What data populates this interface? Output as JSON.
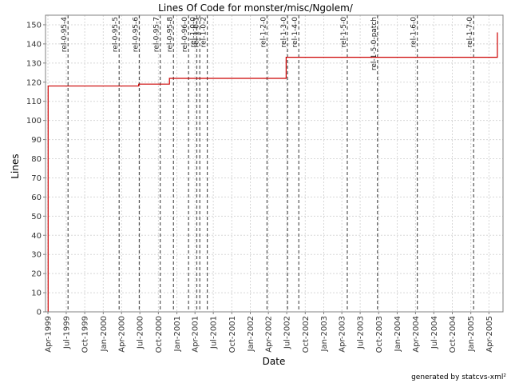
{
  "chart_data": {
    "type": "line",
    "title": "Lines Of Code for monster/misc/Ngolem/",
    "xlabel": "Date",
    "ylabel": "Lines",
    "credit": "generated by statcvs-xml²",
    "ylim": [
      0,
      155
    ],
    "yticks": [
      0,
      10,
      20,
      30,
      40,
      50,
      60,
      70,
      80,
      90,
      100,
      110,
      120,
      130,
      140,
      150
    ],
    "xlim": [
      "1999-03-20",
      "2005-06-10"
    ],
    "xticks": [
      {
        "date": "1999-04-01",
        "label": "Apr-1999"
      },
      {
        "date": "1999-07-01",
        "label": "Jul-1999"
      },
      {
        "date": "1999-10-01",
        "label": "Oct-1999"
      },
      {
        "date": "2000-01-01",
        "label": "Jan-2000"
      },
      {
        "date": "2000-04-01",
        "label": "Apr-2000"
      },
      {
        "date": "2000-07-01",
        "label": "Jul-2000"
      },
      {
        "date": "2000-10-01",
        "label": "Oct-2000"
      },
      {
        "date": "2001-01-01",
        "label": "Jan-2001"
      },
      {
        "date": "2001-04-01",
        "label": "Apr-2001"
      },
      {
        "date": "2001-07-01",
        "label": "Jul-2001"
      },
      {
        "date": "2001-10-01",
        "label": "Oct-2001"
      },
      {
        "date": "2002-01-01",
        "label": "Jan-2002"
      },
      {
        "date": "2002-04-01",
        "label": "Apr-2002"
      },
      {
        "date": "2002-07-01",
        "label": "Jul-2002"
      },
      {
        "date": "2002-10-01",
        "label": "Oct-2002"
      },
      {
        "date": "2003-01-01",
        "label": "Jan-2003"
      },
      {
        "date": "2003-04-01",
        "label": "Apr-2003"
      },
      {
        "date": "2003-07-01",
        "label": "Jul-2003"
      },
      {
        "date": "2003-10-01",
        "label": "Oct-2003"
      },
      {
        "date": "2004-01-01",
        "label": "Jan-2004"
      },
      {
        "date": "2004-04-01",
        "label": "Apr-2004"
      },
      {
        "date": "2004-07-01",
        "label": "Jul-2004"
      },
      {
        "date": "2004-10-01",
        "label": "Oct-2004"
      },
      {
        "date": "2005-01-01",
        "label": "Jan-2005"
      },
      {
        "date": "2005-04-01",
        "label": "Apr-2005"
      }
    ],
    "grid": true,
    "line_color": "#cc0000",
    "marker_color": "#555555",
    "series": [
      {
        "step": true,
        "points": [
          {
            "x": "1999-04-01",
            "y": 0
          },
          {
            "x": "1999-04-02",
            "y": 118
          },
          {
            "x": "2000-06-25",
            "y": 119
          },
          {
            "x": "2000-11-25",
            "y": 122
          },
          {
            "x": "2002-06-28",
            "y": 133
          },
          {
            "x": "2005-05-12",
            "y": 133
          },
          {
            "x": "2005-05-13",
            "y": 146
          }
        ]
      }
    ],
    "markers": [
      {
        "date": "1999-07-10",
        "label": "rel-0-95-4"
      },
      {
        "date": "2000-03-20",
        "label": "rel-0-95-5"
      },
      {
        "date": "2000-06-28",
        "label": "rel-0-95-6"
      },
      {
        "date": "2000-10-10",
        "label": "rel-0-95-7"
      },
      {
        "date": "2000-12-15",
        "label": "rel-0-95-8"
      },
      {
        "date": "2001-02-28",
        "label": "rel-0-96-0"
      },
      {
        "date": "2001-04-10",
        "label": "rel-1-0-0"
      },
      {
        "date": "2001-04-25",
        "label": "rel-1-0-1"
      },
      {
        "date": "2001-06-01",
        "label": "rel-1-0-2"
      },
      {
        "date": "2002-03-25",
        "label": "rel-1-2-0"
      },
      {
        "date": "2002-07-05",
        "label": "rel-1-3-0"
      },
      {
        "date": "2002-08-30",
        "label": "rel-1-4-0"
      },
      {
        "date": "2003-04-28",
        "label": "rel-1-5-0"
      },
      {
        "date": "2003-09-25",
        "label": "rel-1-5-0-patch"
      },
      {
        "date": "2004-04-10",
        "label": "rel-1-6-0"
      },
      {
        "date": "2005-01-15",
        "label": "rel-1-7-0"
      }
    ]
  }
}
